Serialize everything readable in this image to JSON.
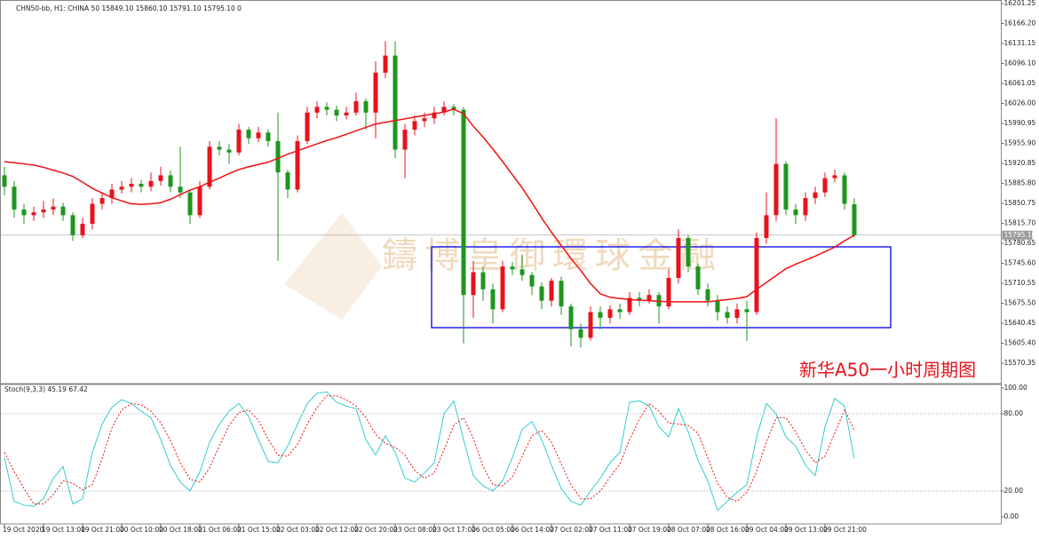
{
  "chart_data": {
    "type": "candlestick",
    "title": "CHN50-bb, H1: CHINA 50 15849.10 15860.10 15791.10 15795.10 0",
    "annotation": "新华A50一小时周期图",
    "watermark": "鑄博皇御環球金融",
    "categories": [
      "19 Oct 2020",
      null,
      null,
      null,
      "19 Oct 13:00",
      null,
      null,
      null,
      "19 Oct 21:00",
      null,
      null,
      null,
      "20 Oct 10:00",
      null,
      null,
      null,
      "20 Oct 18:00",
      null,
      null,
      null,
      "21 Oct 06:00",
      null,
      null,
      null,
      "21 Oct 15:00",
      null,
      null,
      null,
      "22 Oct 03:00",
      null,
      null,
      null,
      "22 Oct 12:00",
      null,
      null,
      null,
      "22 Oct 20:00",
      null,
      null,
      null,
      "23 Oct 08:00",
      null,
      null,
      null,
      "23 Oct 17:00",
      null,
      null,
      null,
      "26 Oct 05:00",
      null,
      null,
      null,
      "26 Oct 14:00",
      null,
      null,
      null,
      "27 Oct 02:00",
      null,
      null,
      null,
      "27 Oct 11:00",
      null,
      null,
      null,
      "27 Oct 19:00",
      null,
      null,
      null,
      "28 Oct 07:00",
      null,
      null,
      null,
      "28 Oct 16:00",
      null,
      null,
      null,
      "29 Oct 04:00",
      null,
      null,
      null,
      "29 Oct 13:00",
      null,
      null,
      null,
      "29 Oct 21:00",
      null,
      null,
      null
    ],
    "open": [
      15900,
      15880,
      15840,
      15830,
      15835,
      15840,
      15845,
      15830,
      15795,
      15815,
      15850,
      15860,
      15875,
      15880,
      15885,
      15880,
      15890,
      15900,
      15880,
      15870,
      15830,
      15880,
      15950,
      15945,
      15940,
      15980,
      15965,
      15975,
      15960,
      15905,
      15875,
      15960,
      16010,
      16020,
      16015,
      16005,
      16010,
      16030,
      16010,
      16080,
      16110,
      15945,
      15980,
      15995,
      16000,
      16010,
      16020,
      16015,
      15690,
      15730,
      15700,
      15665,
      15740,
      15735,
      15725,
      15705,
      15680,
      15715,
      15670,
      15630,
      15615,
      15660,
      15650,
      15665,
      15660,
      15685,
      15680,
      15690,
      15670,
      15720,
      15790,
      15740,
      15700,
      15680,
      15660,
      15650,
      15665,
      15660,
      15790,
      15830,
      15920,
      15840,
      15830,
      15860,
      15870,
      15895,
      15900,
      15849.1
    ],
    "high": [
      15915,
      15890,
      15850,
      15845,
      15855,
      15860,
      15852,
      15835,
      15825,
      15860,
      15870,
      15885,
      15890,
      15895,
      15892,
      15905,
      15915,
      15908,
      15950,
      15875,
      15890,
      15960,
      15960,
      15955,
      15990,
      15985,
      15985,
      15980,
      16010,
      15910,
      15970,
      16020,
      16030,
      16028,
      16022,
      16020,
      16045,
      16035,
      16100,
      16135,
      16135,
      15990,
      16005,
      16010,
      16020,
      16030,
      16025,
      16020,
      15750,
      15740,
      15710,
      15750,
      15748,
      15760,
      15730,
      15712,
      15720,
      15722,
      15675,
      15640,
      15670,
      15670,
      15672,
      15675,
      15695,
      15695,
      15700,
      15695,
      15735,
      15805,
      15795,
      15745,
      15710,
      15690,
      15670,
      15675,
      15680,
      15800,
      15870,
      16000,
      15925,
      15850,
      15870,
      15880,
      15905,
      15910,
      15905,
      15860.1
    ],
    "low": [
      15865,
      15825,
      15815,
      15820,
      15825,
      15830,
      15820,
      15785,
      15790,
      15805,
      15840,
      15850,
      15868,
      15870,
      15870,
      15872,
      15882,
      15870,
      15860,
      15815,
      15825,
      15875,
      15935,
      15920,
      15935,
      15955,
      15958,
      15950,
      15750,
      15860,
      15870,
      15955,
      16000,
      16005,
      15995,
      15998,
      16005,
      15980,
      15965,
      16070,
      15930,
      15895,
      15970,
      15985,
      15990,
      16005,
      16005,
      15605,
      15650,
      15680,
      15640,
      15660,
      15725,
      15715,
      15690,
      15665,
      15670,
      15655,
      15600,
      15598,
      15610,
      15630,
      15640,
      15648,
      15655,
      15670,
      15675,
      15640,
      15665,
      15710,
      15730,
      15690,
      15670,
      15645,
      15640,
      15640,
      15610,
      15655,
      15780,
      15820,
      15830,
      15815,
      15820,
      15850,
      15862,
      15888,
      15840,
      15791.1
    ],
    "close": [
      15880,
      15840,
      15830,
      15835,
      15840,
      15845,
      15830,
      15795,
      15815,
      15850,
      15860,
      15875,
      15880,
      15885,
      15880,
      15890,
      15900,
      15880,
      15870,
      15830,
      15880,
      15950,
      15945,
      15940,
      15980,
      15965,
      15975,
      15960,
      15905,
      15875,
      15960,
      16010,
      16020,
      16015,
      16005,
      16010,
      16030,
      16010,
      16080,
      16110,
      15945,
      15980,
      15995,
      16000,
      16010,
      16020,
      16015,
      15690,
      15730,
      15700,
      15665,
      15740,
      15735,
      15725,
      15705,
      15680,
      15715,
      15670,
      15630,
      15615,
      15660,
      15650,
      15665,
      15660,
      15685,
      15680,
      15690,
      15670,
      15720,
      15790,
      15740,
      15700,
      15680,
      15660,
      15650,
      15665,
      15660,
      15790,
      15830,
      15920,
      15840,
      15830,
      15860,
      15870,
      15895,
      15900,
      15850,
      15795.1
    ],
    "colors": {
      "up": "#e8121c",
      "down": "#1e961e"
    },
    "ma": {
      "color": "#ee1111",
      "values": [
        15924,
        15922,
        15920,
        15918,
        15914,
        15909,
        15904,
        15898,
        15888,
        15877,
        15869,
        15861,
        15855,
        15850,
        15849,
        15850,
        15852,
        15858,
        15866,
        15874,
        15880,
        15888,
        15895,
        15903,
        15910,
        15915,
        15919,
        15923,
        15930,
        15937,
        15943,
        15949,
        15955,
        15961,
        15966,
        15972,
        15978,
        15984,
        15990,
        15993,
        15996,
        15999,
        16002,
        16005,
        16008,
        16011,
        16016,
        16008,
        15986,
        15967,
        15946,
        15924,
        15901,
        15878,
        15852,
        15825,
        15800,
        15777,
        15754,
        15733,
        15710,
        15692,
        15686,
        15684,
        15682,
        15681,
        15680,
        15679,
        15678,
        15678,
        15678,
        15678,
        15678,
        15680,
        15682,
        15684,
        15687,
        15700,
        15712,
        15724,
        15736,
        15744,
        15751,
        15758,
        15766,
        15774,
        15785,
        15795
      ]
    },
    "last_price": {
      "value": 15795.1,
      "label": "15795.10"
    },
    "ylim": [
      15534.6,
      16206.7
    ],
    "yticks": [
      16201.25,
      {
        "value": 16166.2,
        "label": "16166.20"
      },
      16131.15,
      {
        "value": 16096.1,
        "label": "16096.10"
      },
      16061.05,
      {
        "value": 16026,
        "label": "16026.00"
      },
      15990.95,
      {
        "value": 15955.9,
        "label": "15955.90"
      },
      15920.85,
      {
        "value": 15885.8,
        "label": "15885.80"
      },
      15850.75,
      {
        "value": 15815.7,
        "label": "15815.70"
      },
      15780.65,
      {
        "value": 15745.6,
        "label": "15745.60"
      },
      15710.55,
      {
        "value": 15675.5,
        "label": "15675.50"
      },
      15640.45,
      {
        "value": 15605.4,
        "label": "15605.40"
      },
      15570.35
    ],
    "stoch": {
      "label": "Stoch(9,3,3) 45.19 67.42",
      "ylim": [
        -5.52,
        102.76
      ],
      "yticks": [
        {
          "value": 100,
          "label": "100.00"
        },
        {
          "value": 80,
          "label": "80.00"
        },
        {
          "value": 20,
          "label": "20.00"
        },
        {
          "value": 0,
          "label": "0.00"
        }
      ],
      "levels": [
        80,
        20
      ],
      "k": {
        "color": "#33cccc",
        "values": [
          46,
          12,
          9,
          8,
          14,
          30,
          39,
          10,
          14,
          50,
          72,
          85,
          91,
          88,
          82,
          77,
          60,
          40,
          27,
          20,
          35,
          58,
          72,
          82,
          88,
          78,
          60,
          43,
          42,
          55,
          72,
          88,
          96,
          97,
          89,
          86,
          84,
          60,
          48,
          63,
          50,
          30,
          27,
          34,
          42,
          80,
          90,
          60,
          32,
          24,
          20,
          28,
          46,
          68,
          74,
          60,
          40,
          22,
          12,
          9,
          20,
          30,
          42,
          50,
          89,
          90,
          86,
          70,
          62,
          84,
          66,
          44,
          28,
          5,
          12,
          19,
          25,
          62,
          88,
          80,
          62,
          55,
          40,
          32,
          70,
          92,
          86,
          45.19
        ]
      },
      "d": {
        "color": "#ee1111",
        "values": [
          50,
          35,
          22,
          10,
          10,
          17,
          28,
          26,
          21,
          25,
          45,
          69,
          83,
          88,
          87,
          82,
          73,
          59,
          42,
          29,
          27,
          38,
          55,
          71,
          81,
          83,
          75,
          60,
          48,
          47,
          56,
          72,
          85,
          94,
          94,
          91,
          86,
          77,
          64,
          57,
          54,
          48,
          36,
          30,
          34,
          52,
          71,
          77,
          61,
          39,
          25,
          24,
          31,
          47,
          63,
          67,
          58,
          41,
          25,
          14,
          14,
          20,
          31,
          41,
          60,
          76,
          88,
          82,
          73,
          72,
          71,
          65,
          46,
          26,
          15,
          12,
          19,
          35,
          58,
          77,
          77,
          66,
          52,
          42,
          47,
          65,
          83,
          67.42
        ]
      }
    }
  }
}
